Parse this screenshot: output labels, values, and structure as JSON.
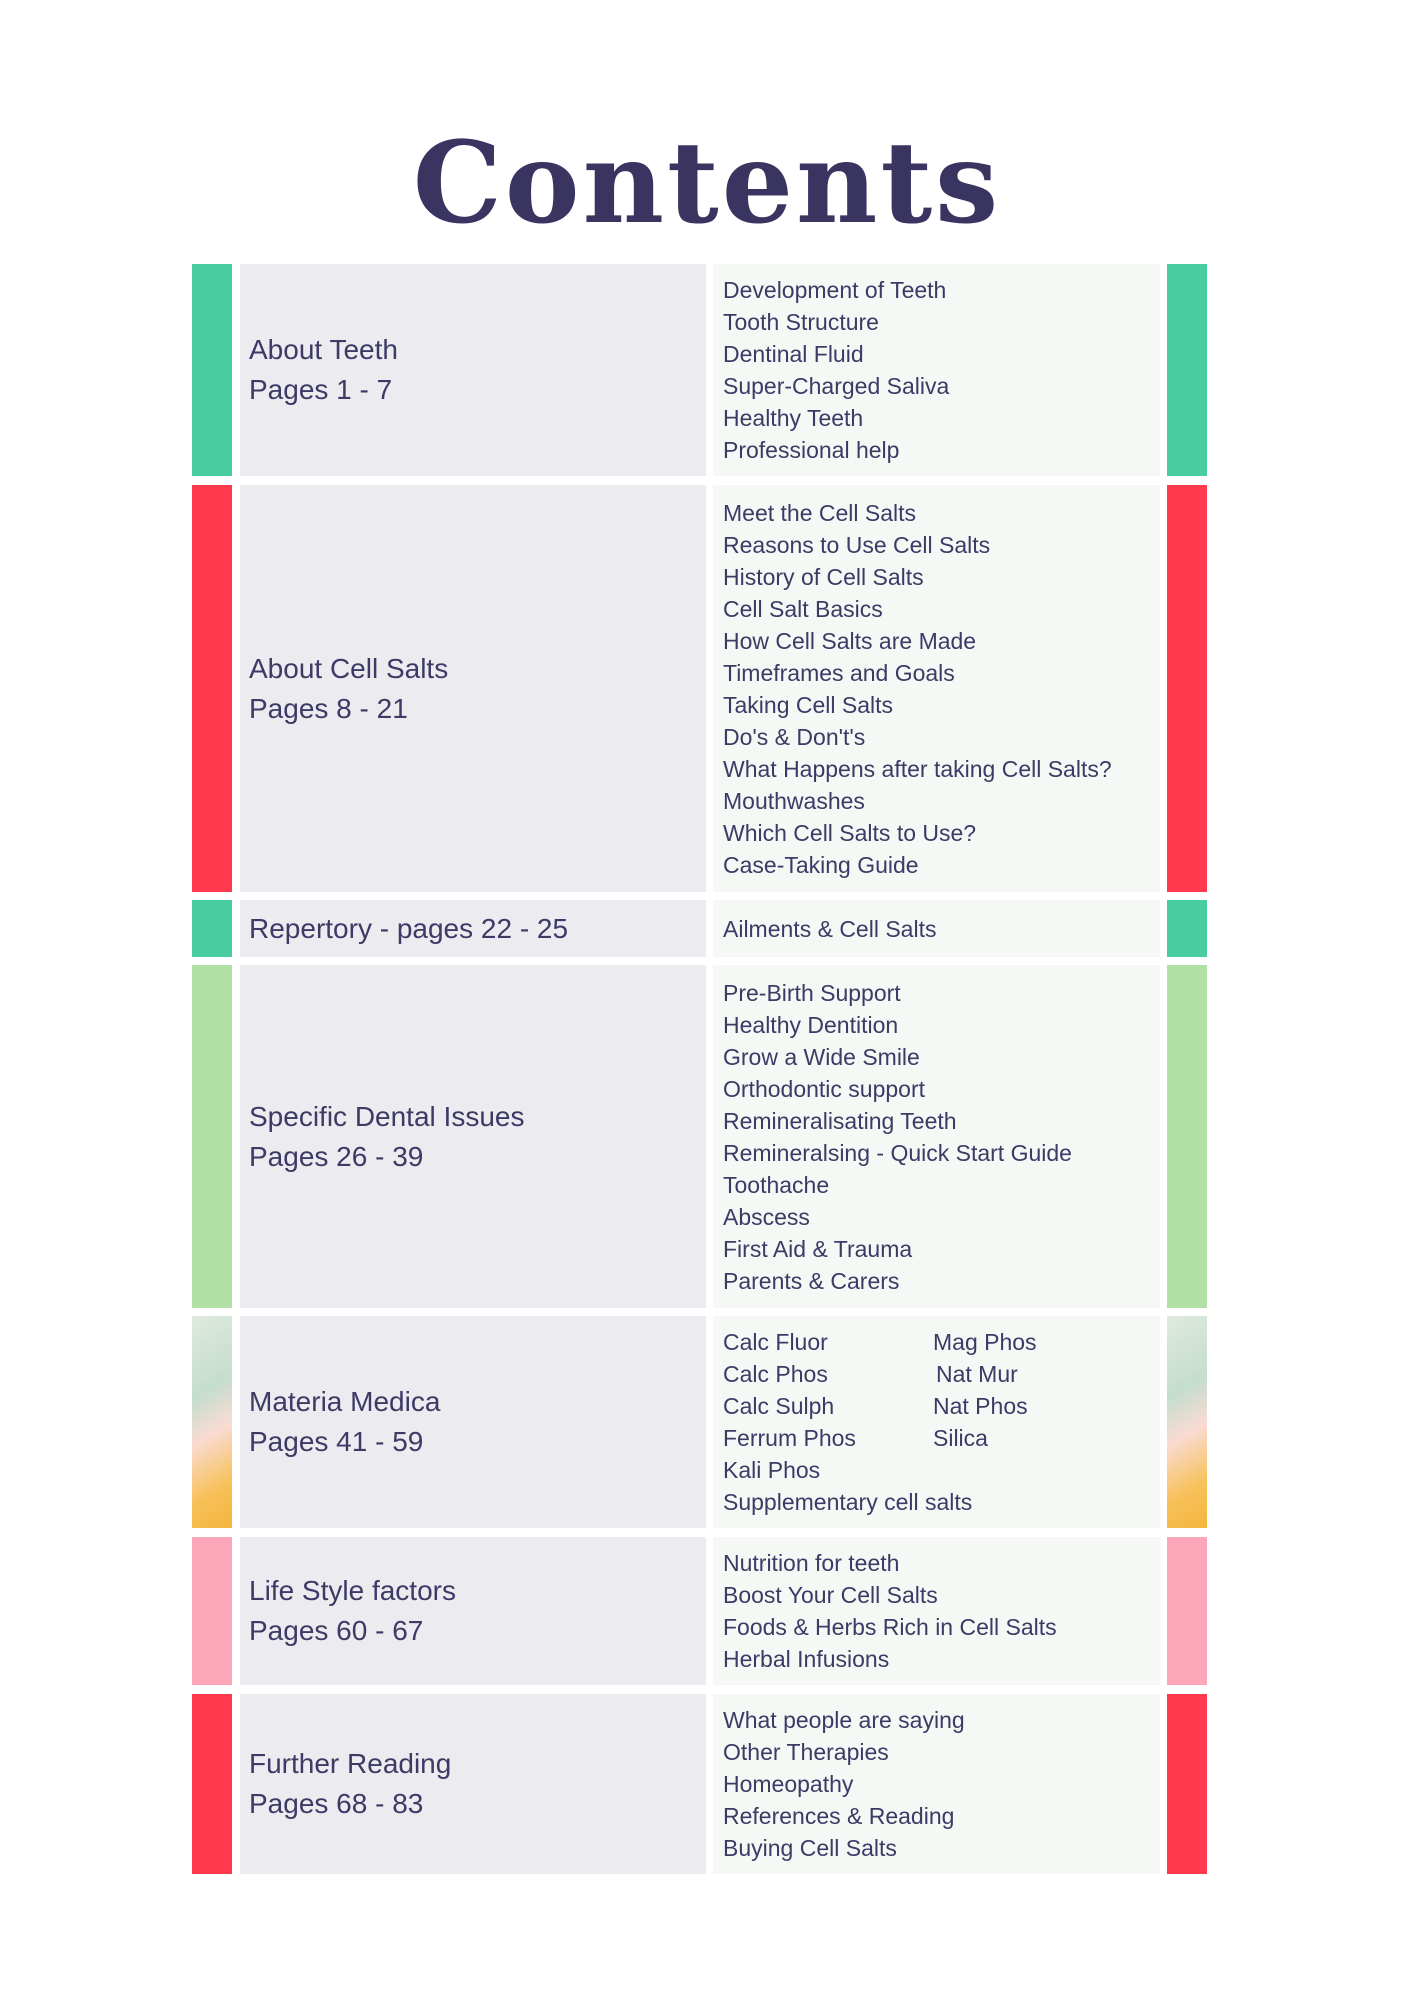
{
  "title": "Contents",
  "colors": {
    "teal": "#48cca0",
    "red": "#ff3a4c",
    "green": "#b3e0a5",
    "pink": "#fba6b9",
    "gradient": "materia-medica-gradient"
  },
  "sections": [
    {
      "name": "About Teeth",
      "pages": "Pages 1 - 7",
      "items": [
        "Development of Teeth",
        "Tooth Structure",
        "Dentinal Fluid",
        "Super-Charged Saliva",
        "Healthy Teeth",
        "Professional help"
      ]
    },
    {
      "name": "About Cell Salts",
      "pages": "Pages 8 - 21",
      "items": [
        "Meet the Cell Salts",
        "Reasons to Use Cell Salts",
        "History of Cell Salts",
        "Cell Salt Basics",
        "How Cell Salts are Made",
        "Timeframes and Goals",
        "Taking Cell Salts",
        "Do's & Don't's",
        "What Happens after taking Cell Salts?",
        "Mouthwashes",
        "Which Cell Salts to Use?",
        "Case-Taking Guide"
      ]
    },
    {
      "name": "Repertory - pages 22 - 25",
      "items": [
        "Ailments & Cell Salts"
      ]
    },
    {
      "name": "Specific Dental Issues",
      "pages": "Pages 26 - 39",
      "items": [
        "Pre-Birth Support",
        "Healthy Dentition",
        "Grow a Wide Smile",
        "Orthodontic support",
        "Remineralisating Teeth",
        "Remineralsing - Quick Start Guide",
        "Toothache",
        "Abscess",
        "First Aid & Trauma",
        "Parents & Carers"
      ]
    },
    {
      "name": "Materia Medica",
      "pages": "Pages 41 - 59",
      "grid": [
        [
          "Calc Fluor",
          "Mag Phos"
        ],
        [
          "Calc Phos",
          "Nat Mur"
        ],
        [
          "Calc Sulph",
          "Nat Phos"
        ],
        [
          "Ferrum Phos",
          "Silica"
        ]
      ],
      "items": [
        "Kali Phos",
        "Supplementary cell salts"
      ]
    },
    {
      "name": "Life Style factors",
      "pages": "Pages 60 - 67",
      "items": [
        "Nutrition for teeth",
        "Boost Your Cell Salts",
        "Foods & Herbs Rich in Cell Salts",
        "Herbal Infusions"
      ]
    },
    {
      "name": "Further Reading",
      "pages": "Pages 68 - 83",
      "items": [
        "What people are saying",
        "Other Therapies",
        "Homeopathy",
        "References & Reading",
        "Buying Cell Salts"
      ]
    }
  ]
}
